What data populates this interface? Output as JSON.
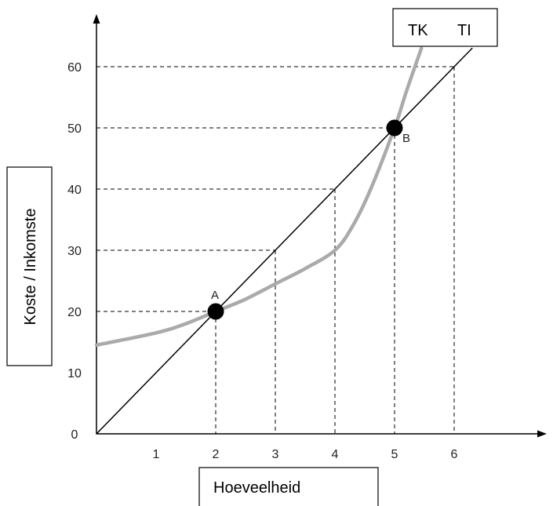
{
  "chart_data": {
    "type": "line",
    "xlabel": "Hoeveelheid",
    "ylabel": "Koste / Inkomste",
    "xlim": [
      0,
      7.5
    ],
    "ylim": [
      0,
      65
    ],
    "x_ticks": [
      "1",
      "2",
      "3",
      "4",
      "5",
      "6"
    ],
    "y_ticks": [
      "0",
      "10",
      "20",
      "30",
      "40",
      "50",
      "60"
    ],
    "grid": false,
    "legend": "top-right",
    "legend_entries": [
      "TK",
      "TI"
    ],
    "series": [
      {
        "name": "TK",
        "color": "#aaaaaa",
        "x": [
          0,
          1,
          1.5,
          2,
          2.5,
          3,
          3.5,
          4,
          4.3,
          4.6,
          5,
          5.2,
          5.45
        ],
        "y": [
          14.5,
          16.5,
          18,
          20,
          22,
          24.5,
          27,
          30,
          34,
          40,
          50,
          56,
          63
        ]
      },
      {
        "name": "TI",
        "color": "#000000",
        "x": [
          0,
          6.3
        ],
        "y": [
          0,
          63
        ]
      }
    ],
    "reference_points": [
      {
        "x": 2,
        "y": 20
      },
      {
        "x": 3,
        "y": 30
      },
      {
        "x": 4,
        "y": 40
      },
      {
        "x": 5,
        "y": 50
      },
      {
        "x": 6,
        "y": 60
      }
    ],
    "annotations": [
      {
        "label": "A",
        "x": 2,
        "y": 20
      },
      {
        "label": "B",
        "x": 5,
        "y": 50
      }
    ]
  }
}
